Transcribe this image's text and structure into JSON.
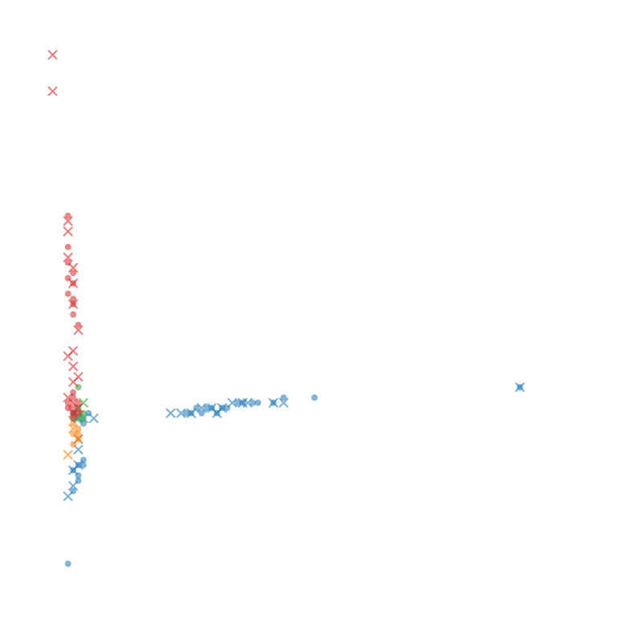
{
  "chart_data": {
    "type": "scatter",
    "title": "",
    "xlabel": "",
    "ylabel": "",
    "axes_visible": false,
    "grid": false,
    "legend": "none",
    "xlim": [
      -0.05,
      1.05
    ],
    "ylim": [
      -0.05,
      1.05
    ],
    "colors": {
      "blue": "#1f77b4",
      "orange": "#ff7f0e",
      "green": "#2ca02c",
      "red": "#d62728"
    },
    "series": [
      {
        "color": "blue",
        "marker": "o",
        "x": [
          0.25,
          0.26,
          0.27,
          0.28,
          0.29,
          0.3,
          0.31,
          0.32,
          0.33,
          0.35,
          0.36,
          0.38,
          0.39,
          0.42,
          0.44,
          0.5,
          0.9,
          0.03,
          0.04,
          0.05,
          0.04,
          0.03,
          0.04,
          0.05,
          0.04,
          0.03,
          0.02,
          0.05,
          0.06
        ],
        "y": [
          0.31,
          0.31,
          0.32,
          0.31,
          0.32,
          0.32,
          0.31,
          0.32,
          0.32,
          0.33,
          0.33,
          0.33,
          0.33,
          0.33,
          0.34,
          0.34,
          0.36,
          0.31,
          0.3,
          0.22,
          0.21,
          0.2,
          0.19,
          0.21,
          0.18,
          0.16,
          0.02,
          0.29,
          0.31
        ]
      },
      {
        "color": "blue",
        "marker": "x",
        "x": [
          0.22,
          0.24,
          0.26,
          0.28,
          0.3,
          0.31,
          0.32,
          0.34,
          0.36,
          0.37,
          0.42,
          0.44,
          0.05,
          0.07,
          0.9,
          0.04,
          0.03,
          0.02,
          0.03,
          0.04,
          0.04
        ],
        "y": [
          0.31,
          0.31,
          0.31,
          0.32,
          0.32,
          0.31,
          0.32,
          0.33,
          0.33,
          0.33,
          0.33,
          0.33,
          0.3,
          0.3,
          0.36,
          0.24,
          0.2,
          0.15,
          0.17,
          0.21,
          0.26
        ]
      },
      {
        "color": "orange",
        "marker": "o",
        "x": [
          0.03,
          0.04,
          0.03,
          0.04,
          0.04,
          0.03
        ],
        "y": [
          0.29,
          0.28,
          0.27,
          0.27,
          0.26,
          0.25
        ]
      },
      {
        "color": "orange",
        "marker": "x",
        "x": [
          0.02,
          0.03,
          0.04
        ],
        "y": [
          0.23,
          0.28,
          0.26
        ]
      },
      {
        "color": "green",
        "marker": "o",
        "x": [
          0.03,
          0.04,
          0.04,
          0.05,
          0.05,
          0.04
        ],
        "y": [
          0.3,
          0.31,
          0.32,
          0.3,
          0.31,
          0.36
        ]
      },
      {
        "color": "green",
        "marker": "x",
        "x": [
          0.04,
          0.05
        ],
        "y": [
          0.3,
          0.33
        ]
      },
      {
        "color": "red",
        "marker": "o",
        "x": [
          0.02,
          0.02,
          0.03,
          0.02,
          0.03,
          0.02,
          0.03,
          0.03,
          0.02,
          0.03,
          0.04,
          0.03,
          0.02,
          0.03,
          0.04,
          0.03,
          0.02,
          0.03,
          0.04,
          0.03
        ],
        "y": [
          0.69,
          0.63,
          0.58,
          0.6,
          0.56,
          0.54,
          0.53,
          0.52,
          0.57,
          0.5,
          0.48,
          0.34,
          0.33,
          0.32,
          0.33,
          0.31,
          0.32,
          0.3,
          0.31,
          0.35
        ]
      },
      {
        "color": "red",
        "marker": "x",
        "x": [
          -0.01,
          -0.01,
          0.02,
          0.02,
          0.02,
          0.03,
          0.03,
          0.03,
          0.04,
          0.03,
          0.02,
          0.03,
          0.04,
          0.03,
          0.02,
          0.03,
          0.04,
          0.03
        ],
        "y": [
          1.0,
          0.93,
          0.68,
          0.66,
          0.61,
          0.59,
          0.56,
          0.52,
          0.47,
          0.43,
          0.42,
          0.4,
          0.38,
          0.37,
          0.34,
          0.33,
          0.32,
          0.31
        ]
      }
    ]
  }
}
